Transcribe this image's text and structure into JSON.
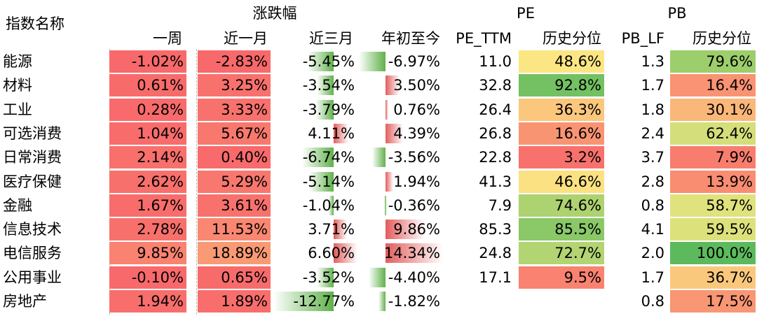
{
  "headers": {
    "name": "指数名称",
    "change_group": "涨跌幅",
    "pe_group": "PE",
    "pb_group": "PB",
    "week": "一周",
    "month": "近一月",
    "three_month": "近三月",
    "ytd": "年初至今",
    "pe_ttm": "PE_TTM",
    "pe_pct": "历史分位",
    "pb_lf": "PB_LF",
    "pb_pct": "历史分位"
  },
  "colors": {
    "bar_up": "#e35d5d",
    "bar_down": "#5fb14a",
    "scale_high": "#5cba5c",
    "scale_mid": "#fbea84",
    "scale_low": "#f8696b"
  },
  "rows": [
    {
      "name": "能源",
      "week": "-1.02%",
      "month": "-2.83%",
      "three_month": "-5.45%",
      "ytd": "-6.97%",
      "pe_ttm": "11.0",
      "pe_pct": "48.6%",
      "pb_lf": "1.3",
      "pb_pct": "79.6%"
    },
    {
      "name": "材料",
      "week": "0.61%",
      "month": "3.25%",
      "three_month": "-3.54%",
      "ytd": "3.50%",
      "pe_ttm": "32.8",
      "pe_pct": "92.8%",
      "pb_lf": "1.7",
      "pb_pct": "16.4%"
    },
    {
      "name": "工业",
      "week": "0.28%",
      "month": "3.33%",
      "three_month": "-3.79%",
      "ytd": "0.76%",
      "pe_ttm": "26.4",
      "pe_pct": "36.3%",
      "pb_lf": "1.8",
      "pb_pct": "30.1%"
    },
    {
      "name": "可选消费",
      "week": "1.04%",
      "month": "5.67%",
      "three_month": "4.11%",
      "ytd": "4.39%",
      "pe_ttm": "26.8",
      "pe_pct": "16.6%",
      "pb_lf": "2.4",
      "pb_pct": "62.4%"
    },
    {
      "name": "日常消费",
      "week": "2.14%",
      "month": "0.40%",
      "three_month": "-6.74%",
      "ytd": "-3.56%",
      "pe_ttm": "22.8",
      "pe_pct": "3.2%",
      "pb_lf": "3.7",
      "pb_pct": "7.9%"
    },
    {
      "name": "医疗保健",
      "week": "2.62%",
      "month": "5.29%",
      "three_month": "-5.14%",
      "ytd": "1.94%",
      "pe_ttm": "41.3",
      "pe_pct": "46.6%",
      "pb_lf": "2.8",
      "pb_pct": "13.9%"
    },
    {
      "name": "金融",
      "week": "1.67%",
      "month": "3.61%",
      "three_month": "-1.04%",
      "ytd": "-0.36%",
      "pe_ttm": "7.9",
      "pe_pct": "74.6%",
      "pb_lf": "0.8",
      "pb_pct": "58.7%"
    },
    {
      "name": "信息技术",
      "week": "2.78%",
      "month": "11.53%",
      "three_month": "3.71%",
      "ytd": "9.86%",
      "pe_ttm": "85.3",
      "pe_pct": "85.5%",
      "pb_lf": "4.1",
      "pb_pct": "59.5%"
    },
    {
      "name": "电信服务",
      "week": "9.85%",
      "month": "18.89%",
      "three_month": "6.60%",
      "ytd": "14.34%",
      "pe_ttm": "24.8",
      "pe_pct": "72.7%",
      "pb_lf": "2.0",
      "pb_pct": "100.0%"
    },
    {
      "name": "公用事业",
      "week": "-0.10%",
      "month": "0.65%",
      "three_month": "-3.52%",
      "ytd": "-4.40%",
      "pe_ttm": "17.1",
      "pe_pct": "9.5%",
      "pb_lf": "1.7",
      "pb_pct": "36.7%"
    },
    {
      "name": "房地产",
      "week": "1.94%",
      "month": "1.89%",
      "three_month": "-12.77%",
      "ytd": "-1.82%",
      "pe_ttm": "",
      "pe_pct": "",
      "pb_lf": "0.8",
      "pb_pct": "17.5%"
    }
  ]
}
